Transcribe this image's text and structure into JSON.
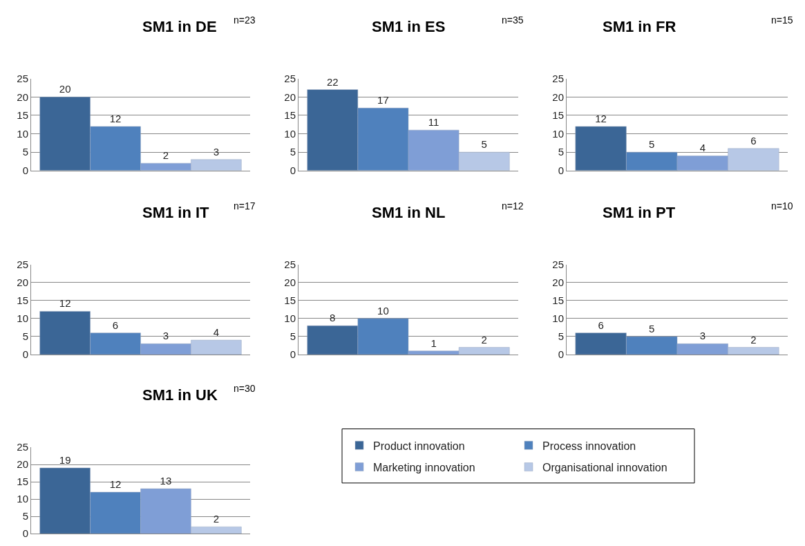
{
  "chart_data": [
    {
      "type": "bar",
      "title": "SM1 in DE",
      "annotations": [
        "n=23"
      ],
      "categories": [
        null
      ],
      "ylim": [
        0,
        25
      ],
      "yticks": [
        0,
        5,
        10,
        15,
        20,
        25
      ],
      "grid": "y",
      "data_labels": true,
      "series": [
        {
          "color": "#3b6696",
          "values": [
            20
          ]
        },
        {
          "color": "#4f81bd",
          "values": [
            12
          ]
        },
        {
          "color": "#7f9ed6",
          "values": [
            2
          ]
        },
        {
          "color": "#b7c8e6",
          "values": [
            3
          ]
        }
      ]
    },
    {
      "type": "bar",
      "title": "SM1 in ES",
      "annotations": [
        "n=35"
      ],
      "categories": [
        null
      ],
      "ylim": [
        0,
        25
      ],
      "yticks": [
        0,
        5,
        10,
        15,
        20,
        25
      ],
      "grid": "y",
      "data_labels": true,
      "series": [
        {
          "color": "#3b6696",
          "values": [
            22
          ]
        },
        {
          "color": "#4f81bd",
          "values": [
            17
          ]
        },
        {
          "color": "#7f9ed6",
          "values": [
            11
          ]
        },
        {
          "color": "#b7c8e6",
          "values": [
            5
          ]
        }
      ]
    },
    {
      "type": "bar",
      "title": "SM1 in FR",
      "annotations": [
        "n=15"
      ],
      "categories": [
        null
      ],
      "ylim": [
        0,
        25
      ],
      "yticks": [
        0,
        5,
        10,
        15,
        20,
        25
      ],
      "grid": "y",
      "data_labels": true,
      "series": [
        {
          "color": "#3b6696",
          "values": [
            12
          ]
        },
        {
          "color": "#4f81bd",
          "values": [
            5
          ]
        },
        {
          "color": "#7f9ed6",
          "values": [
            4
          ]
        },
        {
          "color": "#b7c8e6",
          "values": [
            6
          ]
        }
      ]
    },
    {
      "type": "bar",
      "title": "SM1 in IT",
      "annotations": [
        "n=17"
      ],
      "categories": [
        null
      ],
      "ylim": [
        0,
        25
      ],
      "yticks": [
        0,
        5,
        10,
        15,
        20,
        25
      ],
      "grid": "y",
      "data_labels": true,
      "series": [
        {
          "color": "#3b6696",
          "values": [
            12
          ]
        },
        {
          "color": "#4f81bd",
          "values": [
            6
          ]
        },
        {
          "color": "#7f9ed6",
          "values": [
            3
          ]
        },
        {
          "color": "#b7c8e6",
          "values": [
            4
          ]
        }
      ]
    },
    {
      "type": "bar",
      "title": "SM1 in NL",
      "annotations": [
        "n=12"
      ],
      "categories": [
        null
      ],
      "ylim": [
        0,
        25
      ],
      "yticks": [
        0,
        5,
        10,
        15,
        20,
        25
      ],
      "grid": "y",
      "data_labels": true,
      "series": [
        {
          "color": "#3b6696",
          "values": [
            8
          ]
        },
        {
          "color": "#4f81bd",
          "values": [
            10
          ]
        },
        {
          "color": "#7f9ed6",
          "values": [
            1
          ]
        },
        {
          "color": "#b7c8e6",
          "values": [
            2
          ]
        }
      ]
    },
    {
      "type": "bar",
      "title": "SM1 in PT",
      "annotations": [
        "n=10"
      ],
      "categories": [
        null
      ],
      "ylim": [
        0,
        25
      ],
      "yticks": [
        0,
        5,
        10,
        15,
        20,
        25
      ],
      "grid": "y",
      "data_labels": true,
      "series": [
        {
          "color": "#3b6696",
          "values": [
            6
          ]
        },
        {
          "color": "#4f81bd",
          "values": [
            5
          ]
        },
        {
          "color": "#7f9ed6",
          "values": [
            3
          ]
        },
        {
          "color": "#b7c8e6",
          "values": [
            2
          ]
        }
      ]
    },
    {
      "type": "bar",
      "title": "SM1 in UK",
      "annotations": [
        "n=30"
      ],
      "categories": [
        null
      ],
      "ylim": [
        0,
        25
      ],
      "yticks": [
        0,
        5,
        10,
        15,
        20,
        25
      ],
      "grid": "y",
      "data_labels": true,
      "legend": "right",
      "series": [
        {
          "name": "Product innovation",
          "color": "#3b6696",
          "values": [
            19
          ]
        },
        {
          "name": "Process innovation",
          "color": "#4f81bd",
          "values": [
            12
          ]
        },
        {
          "name": "Marketing innovation",
          "color": "#7f9ed6",
          "values": [
            13
          ]
        },
        {
          "name": "Organisational innovation",
          "color": "#b7c8e6",
          "values": [
            2
          ]
        }
      ]
    }
  ]
}
